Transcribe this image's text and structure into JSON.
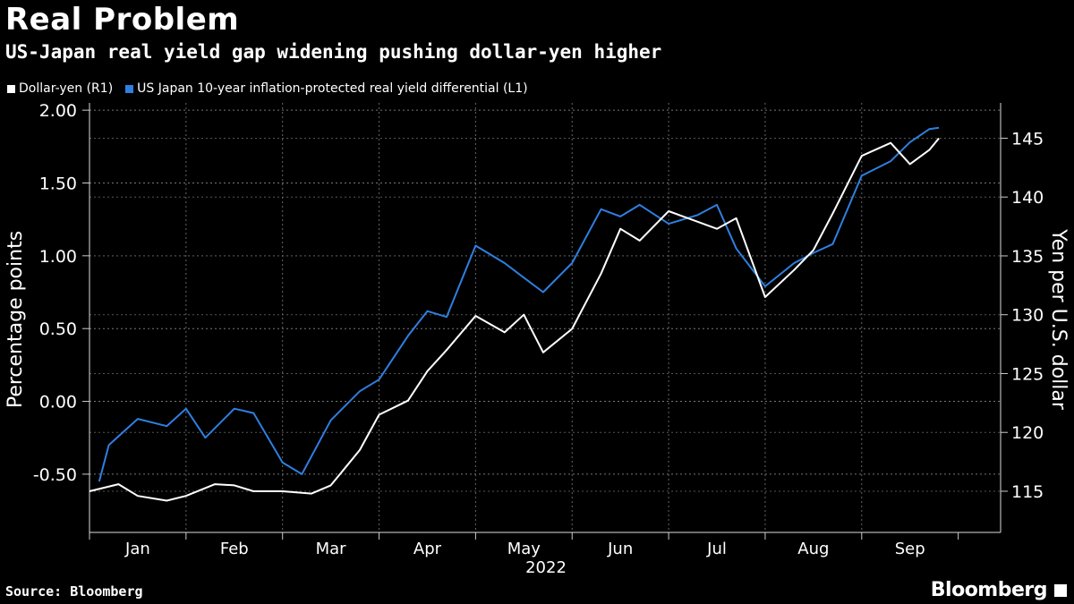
{
  "title": "Real Problem",
  "subtitle": "US-Japan real yield gap widening pushing dollar-yen higher",
  "source": "Source: Bloomberg",
  "brand": "Bloomberg",
  "legend": [
    {
      "label": "Dollar-yen (R1)",
      "color": "#ffffff"
    },
    {
      "label": "US Japan 10-year inflation-protected real yield differential (L1)",
      "color": "#2f7fe0"
    }
  ],
  "chart_data": {
    "type": "line",
    "x_label": "2022",
    "months": [
      "Jan",
      "Feb",
      "Mar",
      "Apr",
      "May",
      "Jun",
      "Jul",
      "Aug",
      "Sep"
    ],
    "left_axis": {
      "label": "Percentage points",
      "ticks": [
        "2.00",
        "1.50",
        "1.00",
        "0.50",
        "0.00",
        "-0.50"
      ],
      "range": [
        -0.9,
        2.05
      ]
    },
    "right_axis": {
      "label": "Yen per U.S. dollar",
      "ticks": [
        "145",
        "140",
        "135",
        "130",
        "125",
        "120",
        "115"
      ],
      "range": [
        111.5,
        148
      ]
    },
    "series": [
      {
        "name": "Dollar-yen (R1)",
        "axis": "right",
        "color": "#ffffff",
        "t": [
          0,
          0.3,
          0.5,
          0.8,
          1,
          1.3,
          1.5,
          1.7,
          2,
          2.3,
          2.5,
          2.8,
          3,
          3.3,
          3.5,
          3.7,
          4,
          4.3,
          4.5,
          4.7,
          5,
          5.3,
          5.5,
          5.7,
          6,
          6.3,
          6.5,
          6.7,
          7,
          7.3,
          7.5,
          7.7,
          8,
          8.3,
          8.5,
          8.7,
          8.8
        ],
        "values": [
          115,
          115.6,
          114.6,
          114.2,
          114.6,
          115.6,
          115.5,
          115,
          115,
          114.8,
          115.5,
          118.5,
          121.5,
          122.7,
          125.2,
          127,
          129.9,
          128.5,
          130,
          126.8,
          128.8,
          133.5,
          137.3,
          136.3,
          138.8,
          137.9,
          137.3,
          138.2,
          131.5,
          133.8,
          135.5,
          138.6,
          143.5,
          144.6,
          142.8,
          144,
          145
        ]
      },
      {
        "name": "US Japan 10-year inflation-protected real yield differential (L1)",
        "axis": "left",
        "color": "#2f7fe0",
        "t": [
          0.1,
          0.2,
          0.5,
          0.8,
          1,
          1.2,
          1.5,
          1.7,
          2,
          2.2,
          2.5,
          2.8,
          3,
          3.3,
          3.5,
          3.7,
          4,
          4.3,
          4.5,
          4.7,
          5,
          5.3,
          5.5,
          5.7,
          6,
          6.3,
          6.5,
          6.7,
          7,
          7.3,
          7.5,
          7.7,
          8,
          8.3,
          8.5,
          8.7,
          8.8
        ],
        "values": [
          -0.55,
          -0.3,
          -0.12,
          -0.17,
          -0.05,
          -0.25,
          -0.05,
          -0.08,
          -0.42,
          -0.5,
          -0.13,
          0.07,
          0.15,
          0.45,
          0.62,
          0.58,
          1.07,
          0.95,
          0.85,
          0.75,
          0.95,
          1.32,
          1.27,
          1.35,
          1.22,
          1.28,
          1.35,
          1.05,
          0.79,
          0.95,
          1.02,
          1.08,
          1.55,
          1.65,
          1.78,
          1.87,
          1.88
        ]
      }
    ]
  }
}
